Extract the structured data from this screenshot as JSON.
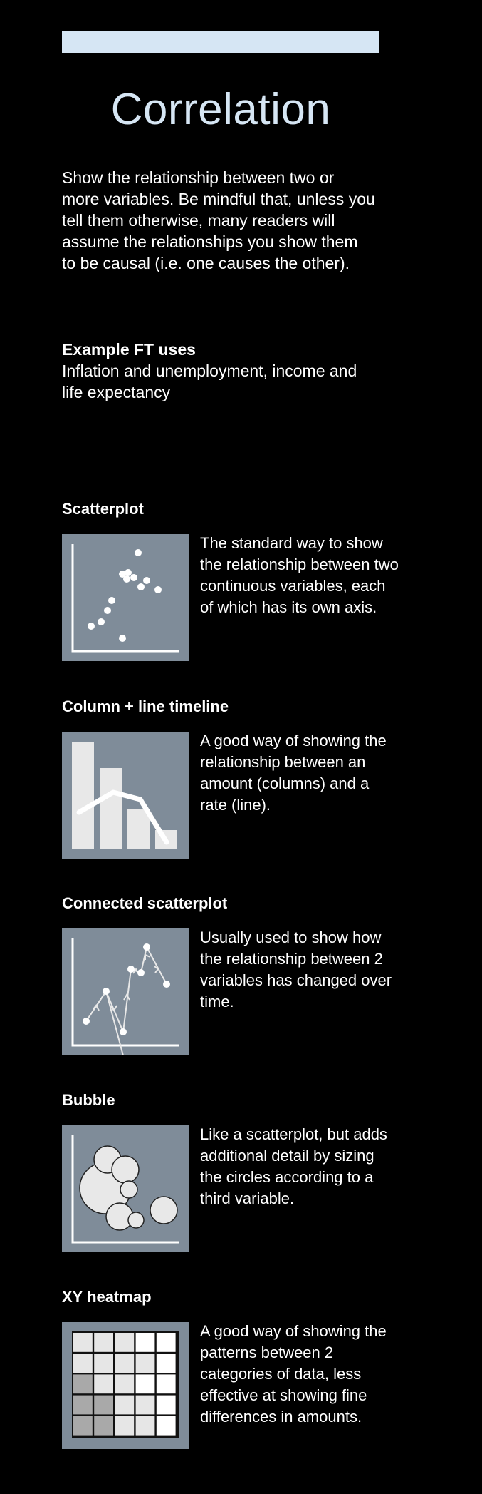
{
  "page": {
    "title": "Correlation",
    "intro": "Show the relationship between two or more variables. Be mindful that, unless you tell them otherwise, many readers will assume the relationships you show them to be causal (i.e. one causes the other).",
    "uses_heading": "Example FT uses",
    "uses_text": "Inflation and unemployment, income and life expectancy"
  },
  "colors": {
    "background": "#000000",
    "accent": "#d6e6f4",
    "icon_background": "#7f8c99",
    "text": "#ffffff"
  },
  "charts": [
    {
      "name": "Scatterplot",
      "description": "The standard way to show the relationship between two continuous variables, each of which has its own axis.",
      "icon": "scatterplot-icon"
    },
    {
      "name": "Column + line timeline",
      "description": "A good way of showing the relationship between an amount (columns) and a rate (line).",
      "icon": "column-line-timeline-icon"
    },
    {
      "name": "Connected scatterplot",
      "description": "Usually used to show how the relationship between 2 variables has changed over time.",
      "icon": "connected-scatterplot-icon"
    },
    {
      "name": "Bubble",
      "description": "Like a scatterplot, but adds additional detail by sizing the circles according to a third variable.",
      "icon": "bubble-chart-icon"
    },
    {
      "name": "XY heatmap",
      "description": "A good way of showing the patterns between 2 categories of data, less effective at showing fine differences in amounts.",
      "icon": "xy-heatmap-icon"
    }
  ]
}
